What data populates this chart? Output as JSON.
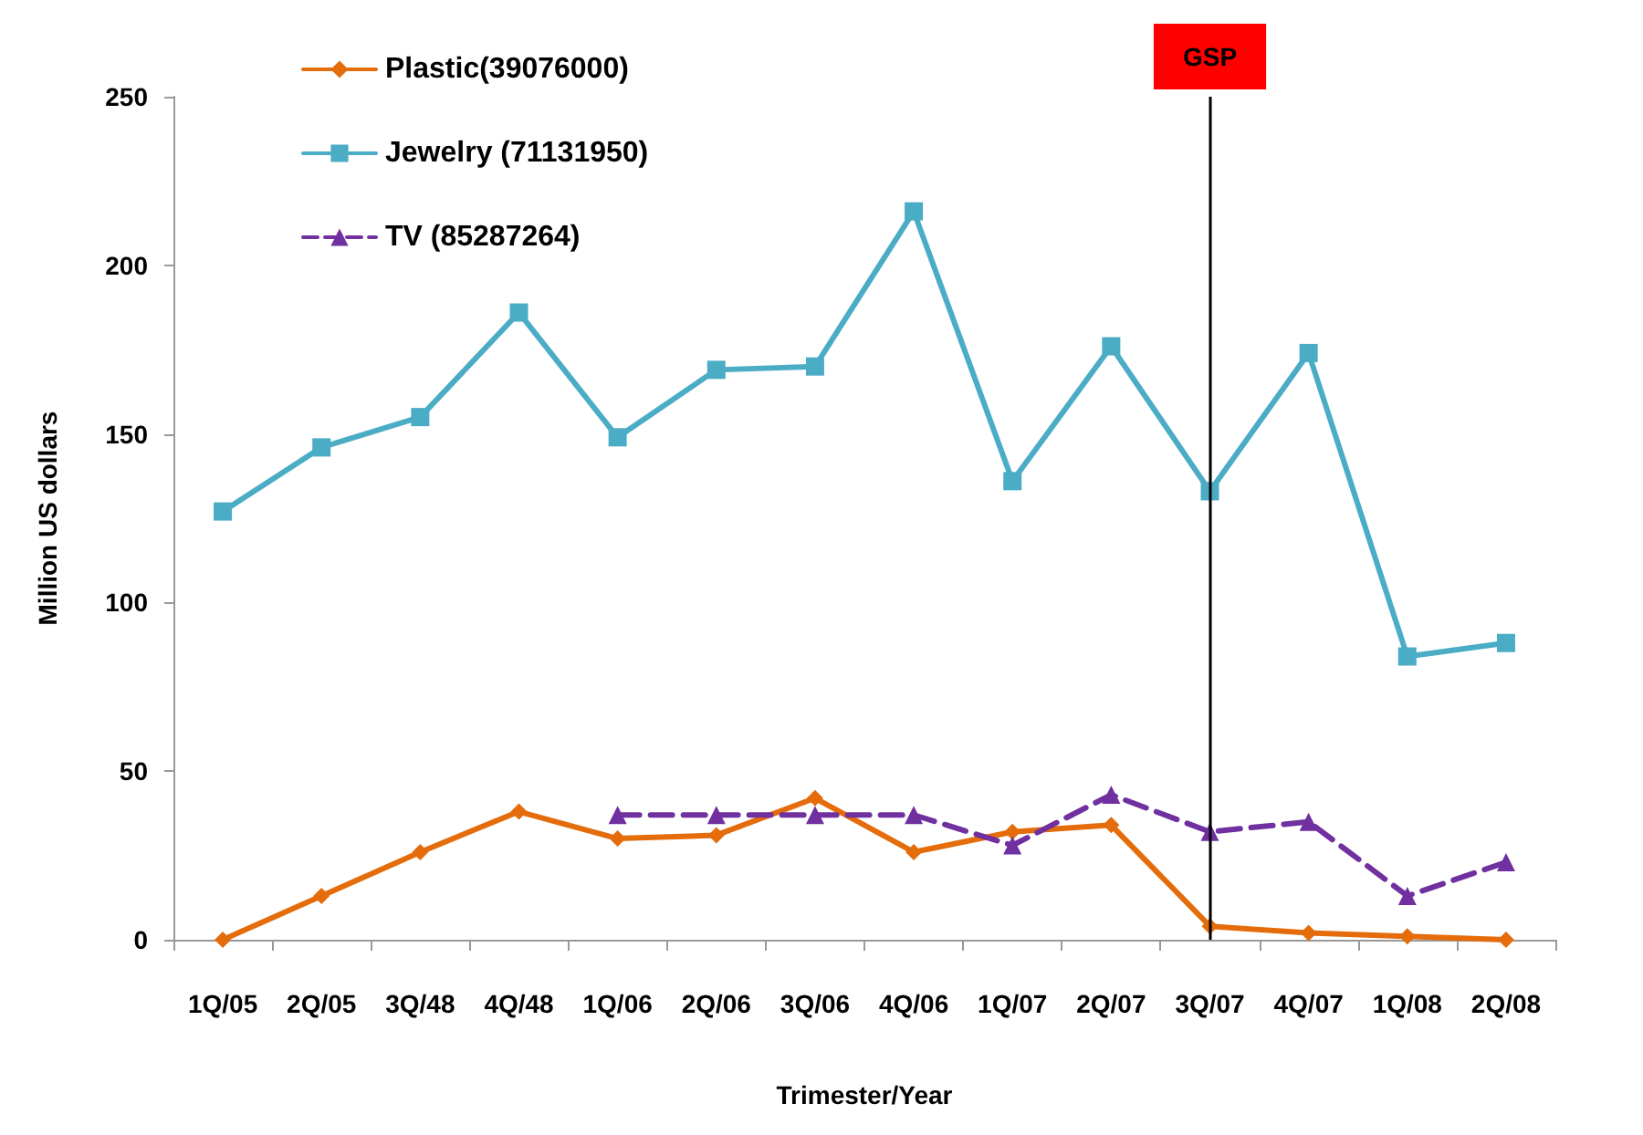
{
  "chart_data": {
    "type": "line",
    "xlabel": "Trimester/Year",
    "ylabel": "Million US dollars",
    "categories": [
      "1Q/05",
      "2Q/05",
      "3Q/48",
      "4Q/48",
      "1Q/06",
      "2Q/06",
      "3Q/06",
      "4Q/06",
      "1Q/07",
      "2Q/07",
      "3Q/07",
      "4Q/07",
      "1Q/08",
      "2Q/08"
    ],
    "series": [
      {
        "name": "Plastic(39076000)",
        "color": "#e46c0a",
        "marker": "diamond",
        "line_style": "solid",
        "values": [
          0,
          13,
          26,
          38,
          30,
          31,
          42,
          26,
          32,
          34,
          4,
          2,
          1,
          0
        ]
      },
      {
        "name": "Jewelry (71131950)",
        "color": "#4bacc6",
        "marker": "square",
        "line_style": "solid",
        "values": [
          127,
          146,
          155,
          186,
          149,
          169,
          170,
          216,
          136,
          176,
          133,
          174,
          84,
          88
        ]
      },
      {
        "name": "TV (85287264)",
        "color": "#7030a0",
        "marker": "triangle",
        "line_style": "dashed",
        "values": [
          null,
          null,
          null,
          null,
          37,
          37,
          37,
          37,
          28,
          43,
          32,
          35,
          13,
          23
        ]
      }
    ],
    "ylim": [
      0,
      250
    ],
    "yticks": [
      0,
      50,
      100,
      150,
      200,
      250
    ],
    "grid": false,
    "legend": "top left",
    "ref_lines": [
      {
        "axis": "x",
        "value": "3Q/07",
        "label": "GSP",
        "color": "#000000"
      }
    ]
  }
}
